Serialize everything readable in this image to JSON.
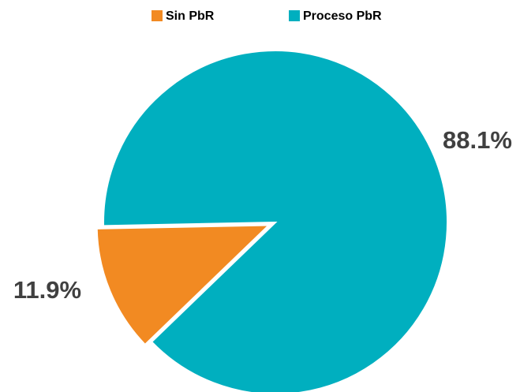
{
  "chart_data": {
    "type": "pie",
    "categories": [
      "Sin PbR",
      "Proceso PbR"
    ],
    "values": [
      11.9,
      88.1
    ],
    "value_labels": [
      "11.9%",
      "88.1%"
    ],
    "colors": [
      "#f28a22",
      "#00afbf"
    ],
    "legend": "top"
  }
}
